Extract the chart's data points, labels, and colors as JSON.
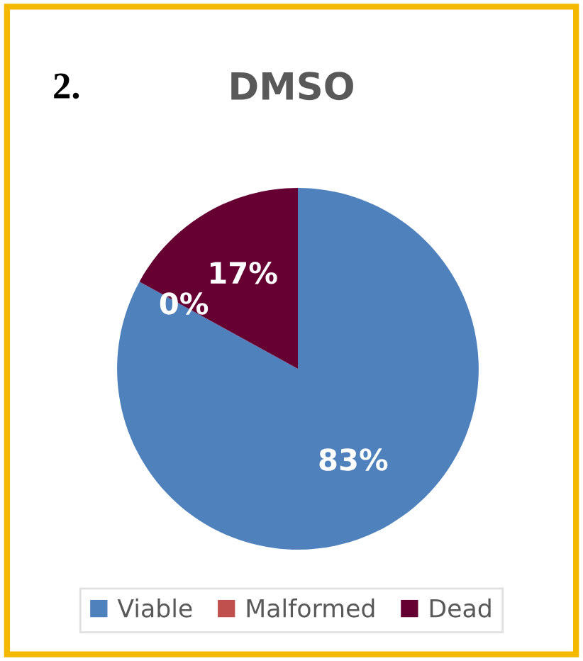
{
  "chart_data": {
    "type": "pie",
    "title": "DMSO",
    "annotations": [
      "2."
    ],
    "categories": [
      "Viable",
      "Malformed",
      "Dead"
    ],
    "values": [
      83,
      0,
      17
    ],
    "colors": [
      "#4f81bd",
      "#c0504d",
      "#660033"
    ],
    "value_labels": [
      "83%",
      "0%",
      "17%"
    ],
    "legend": "bottom"
  }
}
